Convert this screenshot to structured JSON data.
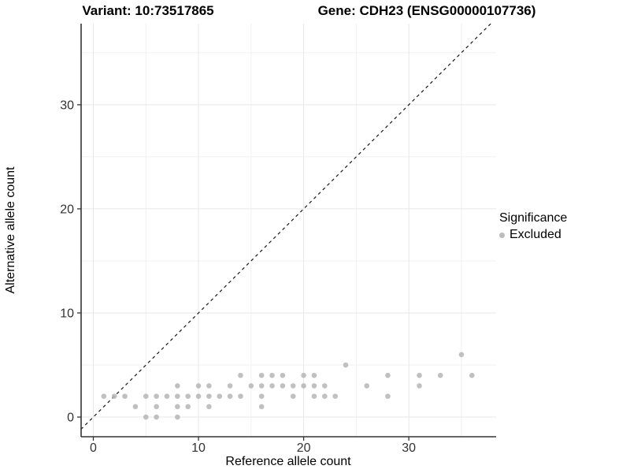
{
  "titles": {
    "variant": "Variant: 10:73517865",
    "gene": "Gene: CDH23 (ENSG00000107736)"
  },
  "legend": {
    "title": "Significance",
    "items": [
      {
        "label": "Excluded",
        "color": "#bcbcbc"
      }
    ]
  },
  "chart_data": {
    "type": "scatter",
    "title": "",
    "xlabel": "Reference allele count",
    "ylabel": "Alternative allele count",
    "xlim": [
      -1.16,
      38.3
    ],
    "ylim": [
      -1.89,
      37.79
    ],
    "x_major_ticks": [
      0,
      10,
      20,
      30
    ],
    "y_major_ticks": [
      0,
      10,
      20,
      30
    ],
    "x_minor_gridlines": [
      5,
      15,
      25,
      35
    ],
    "y_minor_gridlines": [
      5,
      15,
      25,
      35
    ],
    "grid": "on",
    "legend_position": "right",
    "reference_line": {
      "type": "identity",
      "style": "dashed",
      "color": "#1a1a1a"
    },
    "series": [
      {
        "name": "Excluded",
        "color": "#b5b5b5",
        "points": [
          [
            5,
            0
          ],
          [
            6,
            0
          ],
          [
            8,
            0
          ],
          [
            4,
            1
          ],
          [
            6,
            1
          ],
          [
            8,
            1
          ],
          [
            9,
            1
          ],
          [
            11,
            1
          ],
          [
            16,
            1
          ],
          [
            1,
            2
          ],
          [
            2,
            2
          ],
          [
            3,
            2
          ],
          [
            5,
            2
          ],
          [
            6,
            2
          ],
          [
            7,
            2
          ],
          [
            8,
            2
          ],
          [
            9,
            2
          ],
          [
            10,
            2
          ],
          [
            11,
            2
          ],
          [
            12,
            2
          ],
          [
            13,
            2
          ],
          [
            14,
            2
          ],
          [
            16,
            2
          ],
          [
            19,
            2
          ],
          [
            21,
            2
          ],
          [
            22,
            2
          ],
          [
            23,
            2
          ],
          [
            28,
            2
          ],
          [
            8,
            3
          ],
          [
            10,
            3
          ],
          [
            11,
            3
          ],
          [
            13,
            3
          ],
          [
            15,
            3
          ],
          [
            16,
            3
          ],
          [
            17,
            3
          ],
          [
            18,
            3
          ],
          [
            19,
            3
          ],
          [
            20,
            3
          ],
          [
            21,
            3
          ],
          [
            22,
            3
          ],
          [
            26,
            3
          ],
          [
            31,
            3
          ],
          [
            14,
            4
          ],
          [
            16,
            4
          ],
          [
            17,
            4
          ],
          [
            18,
            4
          ],
          [
            20,
            4
          ],
          [
            21,
            4
          ],
          [
            28,
            4
          ],
          [
            31,
            4
          ],
          [
            33,
            4
          ],
          [
            36,
            4
          ],
          [
            24,
            5
          ],
          [
            35,
            6
          ]
        ]
      }
    ],
    "colors": {
      "point": "#b5b5b5",
      "grid_major": "#e7e7e7",
      "grid_minor": "#f1f1f1",
      "axis_line": "#333333",
      "tick_label": "#333333"
    }
  }
}
